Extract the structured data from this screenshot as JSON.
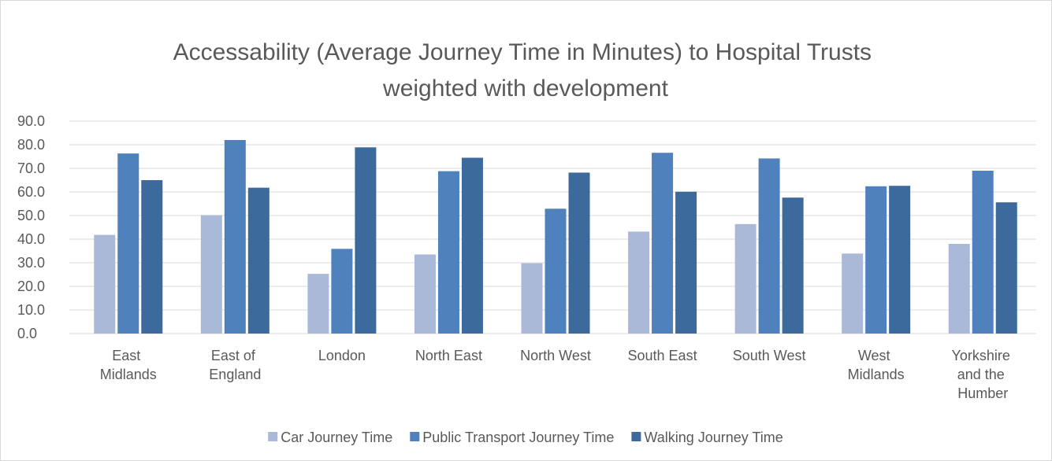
{
  "chart_data": {
    "type": "bar",
    "title": "Accessability (Average Journey Time in Minutes) to Hospital Trusts weighted with development",
    "categories": [
      "East Midlands",
      "East of England",
      "London",
      "North East",
      "North West",
      "South East",
      "South West",
      "West Midlands",
      "Yorkshire and the Humber"
    ],
    "series": [
      {
        "name": "Car Journey Time",
        "color": "#abb9d9",
        "values": [
          41.8,
          50.2,
          25.3,
          33.5,
          29.8,
          43.2,
          46.4,
          33.9,
          38.0
        ]
      },
      {
        "name": "Public Transport Journey Time",
        "color": "#4f81bd",
        "values": [
          76.3,
          82.0,
          35.9,
          68.8,
          52.9,
          76.6,
          74.2,
          62.4,
          69.0
        ]
      },
      {
        "name": "Walking Journey Time",
        "color": "#3c6a9c",
        "values": [
          65.0,
          61.8,
          78.9,
          74.5,
          68.2,
          60.1,
          57.6,
          62.6,
          55.6
        ]
      }
    ],
    "ylim": [
      0,
      90
    ],
    "yticks": [
      {
        "value": 0,
        "label": "0.0"
      },
      {
        "value": 10,
        "label": "10.0"
      },
      {
        "value": 20,
        "label": "20.0"
      },
      {
        "value": 30,
        "label": "30.0"
      },
      {
        "value": 40,
        "label": "40.0"
      },
      {
        "value": 50,
        "label": "50.0"
      },
      {
        "value": 60,
        "label": "60.0"
      },
      {
        "value": 70,
        "label": "70.0"
      },
      {
        "value": 80,
        "label": "80.0"
      },
      {
        "value": 90,
        "label": "90.0"
      }
    ],
    "grid": true,
    "legend": "bottom"
  }
}
